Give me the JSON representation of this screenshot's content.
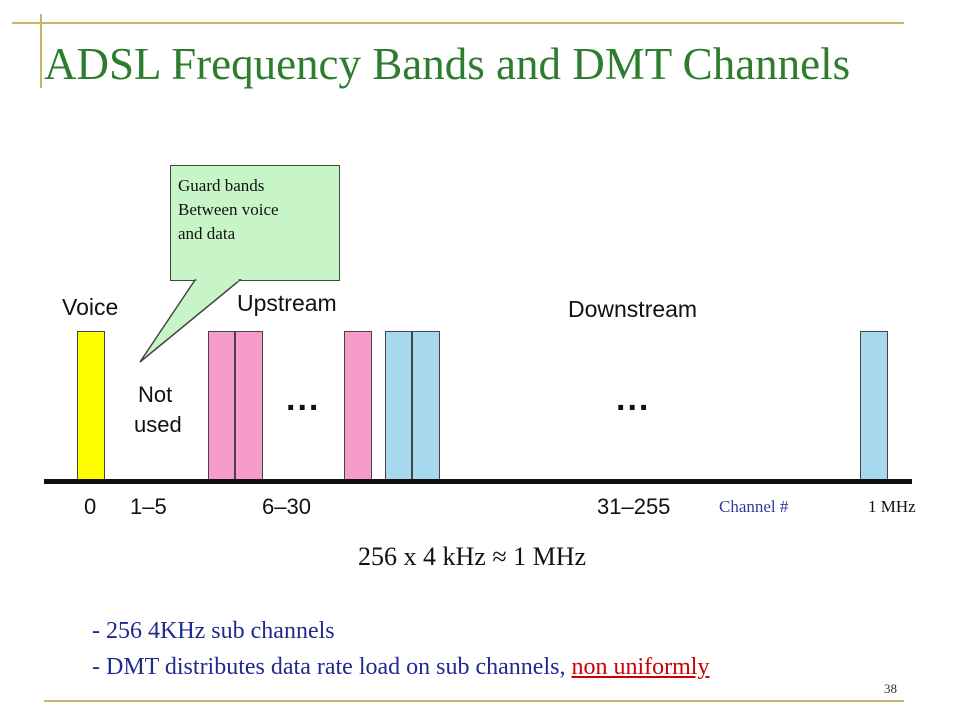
{
  "slide": {
    "title": "ADSL Frequency Bands and DMT Channels",
    "page_number": "38"
  },
  "callout": {
    "lines": [
      "Guard bands",
      "Between voice",
      "and data"
    ]
  },
  "bands": {
    "voice": "Voice",
    "not_used_1": "Not",
    "not_used_2": "used",
    "upstream": "Upstream",
    "downstream": "Downstream",
    "ellipsis": "..."
  },
  "axis": {
    "ticks": [
      "0",
      "1–5",
      "6–30",
      "31–255"
    ],
    "channel_label": "Channel #",
    "end_label": "1 MHz"
  },
  "equation": "256 x 4 kHz ≈ 1 MHz",
  "notes": {
    "line1": "- 256   4KHz sub channels",
    "line2_main": "- DMT distributes data rate load on sub channels, ",
    "line2_emphasis": "non uniformly"
  },
  "colors": {
    "voice": "#ffff00",
    "upstream": "#f59ccb",
    "downstream": "#a6d8ee",
    "callout": "#c8f5c8",
    "title": "#2e7d2e",
    "emphasis": "#cc0000",
    "channel_label": "#2f3a9a"
  }
}
